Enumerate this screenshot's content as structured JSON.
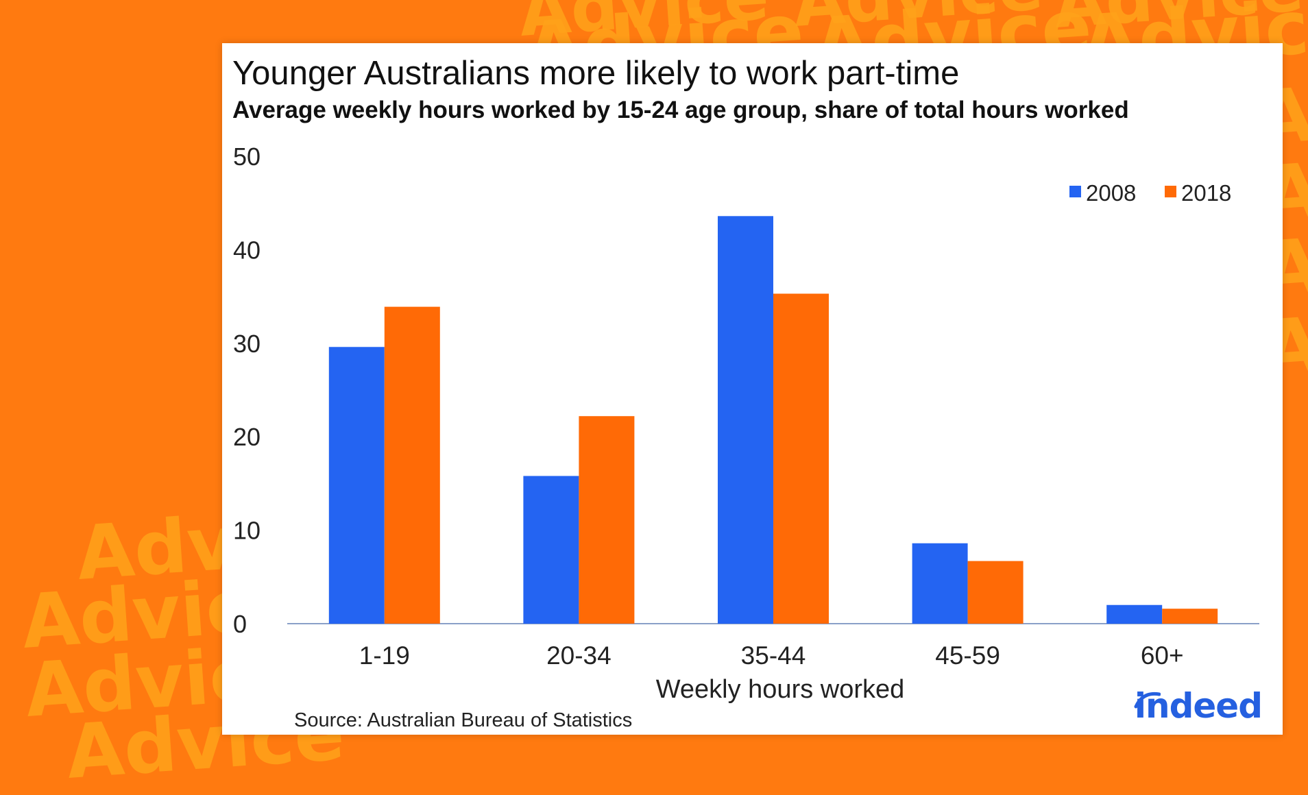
{
  "colors": {
    "background": "#ff7a10",
    "pattern_text": "#ffa21a",
    "series_2008": "#2464f2",
    "series_2018": "#ff6a06",
    "axis": "#8aa0c8",
    "logo": "#2560e0"
  },
  "background": {
    "watermark_word": "Advice"
  },
  "chart_data": {
    "type": "bar",
    "title": "Younger Australians more likely to work part-time",
    "subtitle": "Average weekly hours worked by 15-24 age group, share of total hours worked",
    "xlabel": "Weekly hours worked",
    "ylabel": "",
    "categories": [
      "1-19",
      "20-34",
      "35-44",
      "45-59",
      "60+"
    ],
    "series": [
      {
        "name": "2008",
        "color": "#2464f2",
        "values": [
          29.6,
          15.8,
          43.6,
          8.6,
          2.0
        ]
      },
      {
        "name": "2018",
        "color": "#ff6a06",
        "values": [
          33.9,
          22.2,
          35.3,
          6.7,
          1.6
        ]
      }
    ],
    "ylim": [
      0,
      50
    ],
    "yticks": [
      0,
      10,
      20,
      30,
      40,
      50
    ],
    "grid": false,
    "legend_position": "top-right"
  },
  "footer": {
    "source": "Source: Australian Bureau of Statistics",
    "logo": "indeed"
  }
}
